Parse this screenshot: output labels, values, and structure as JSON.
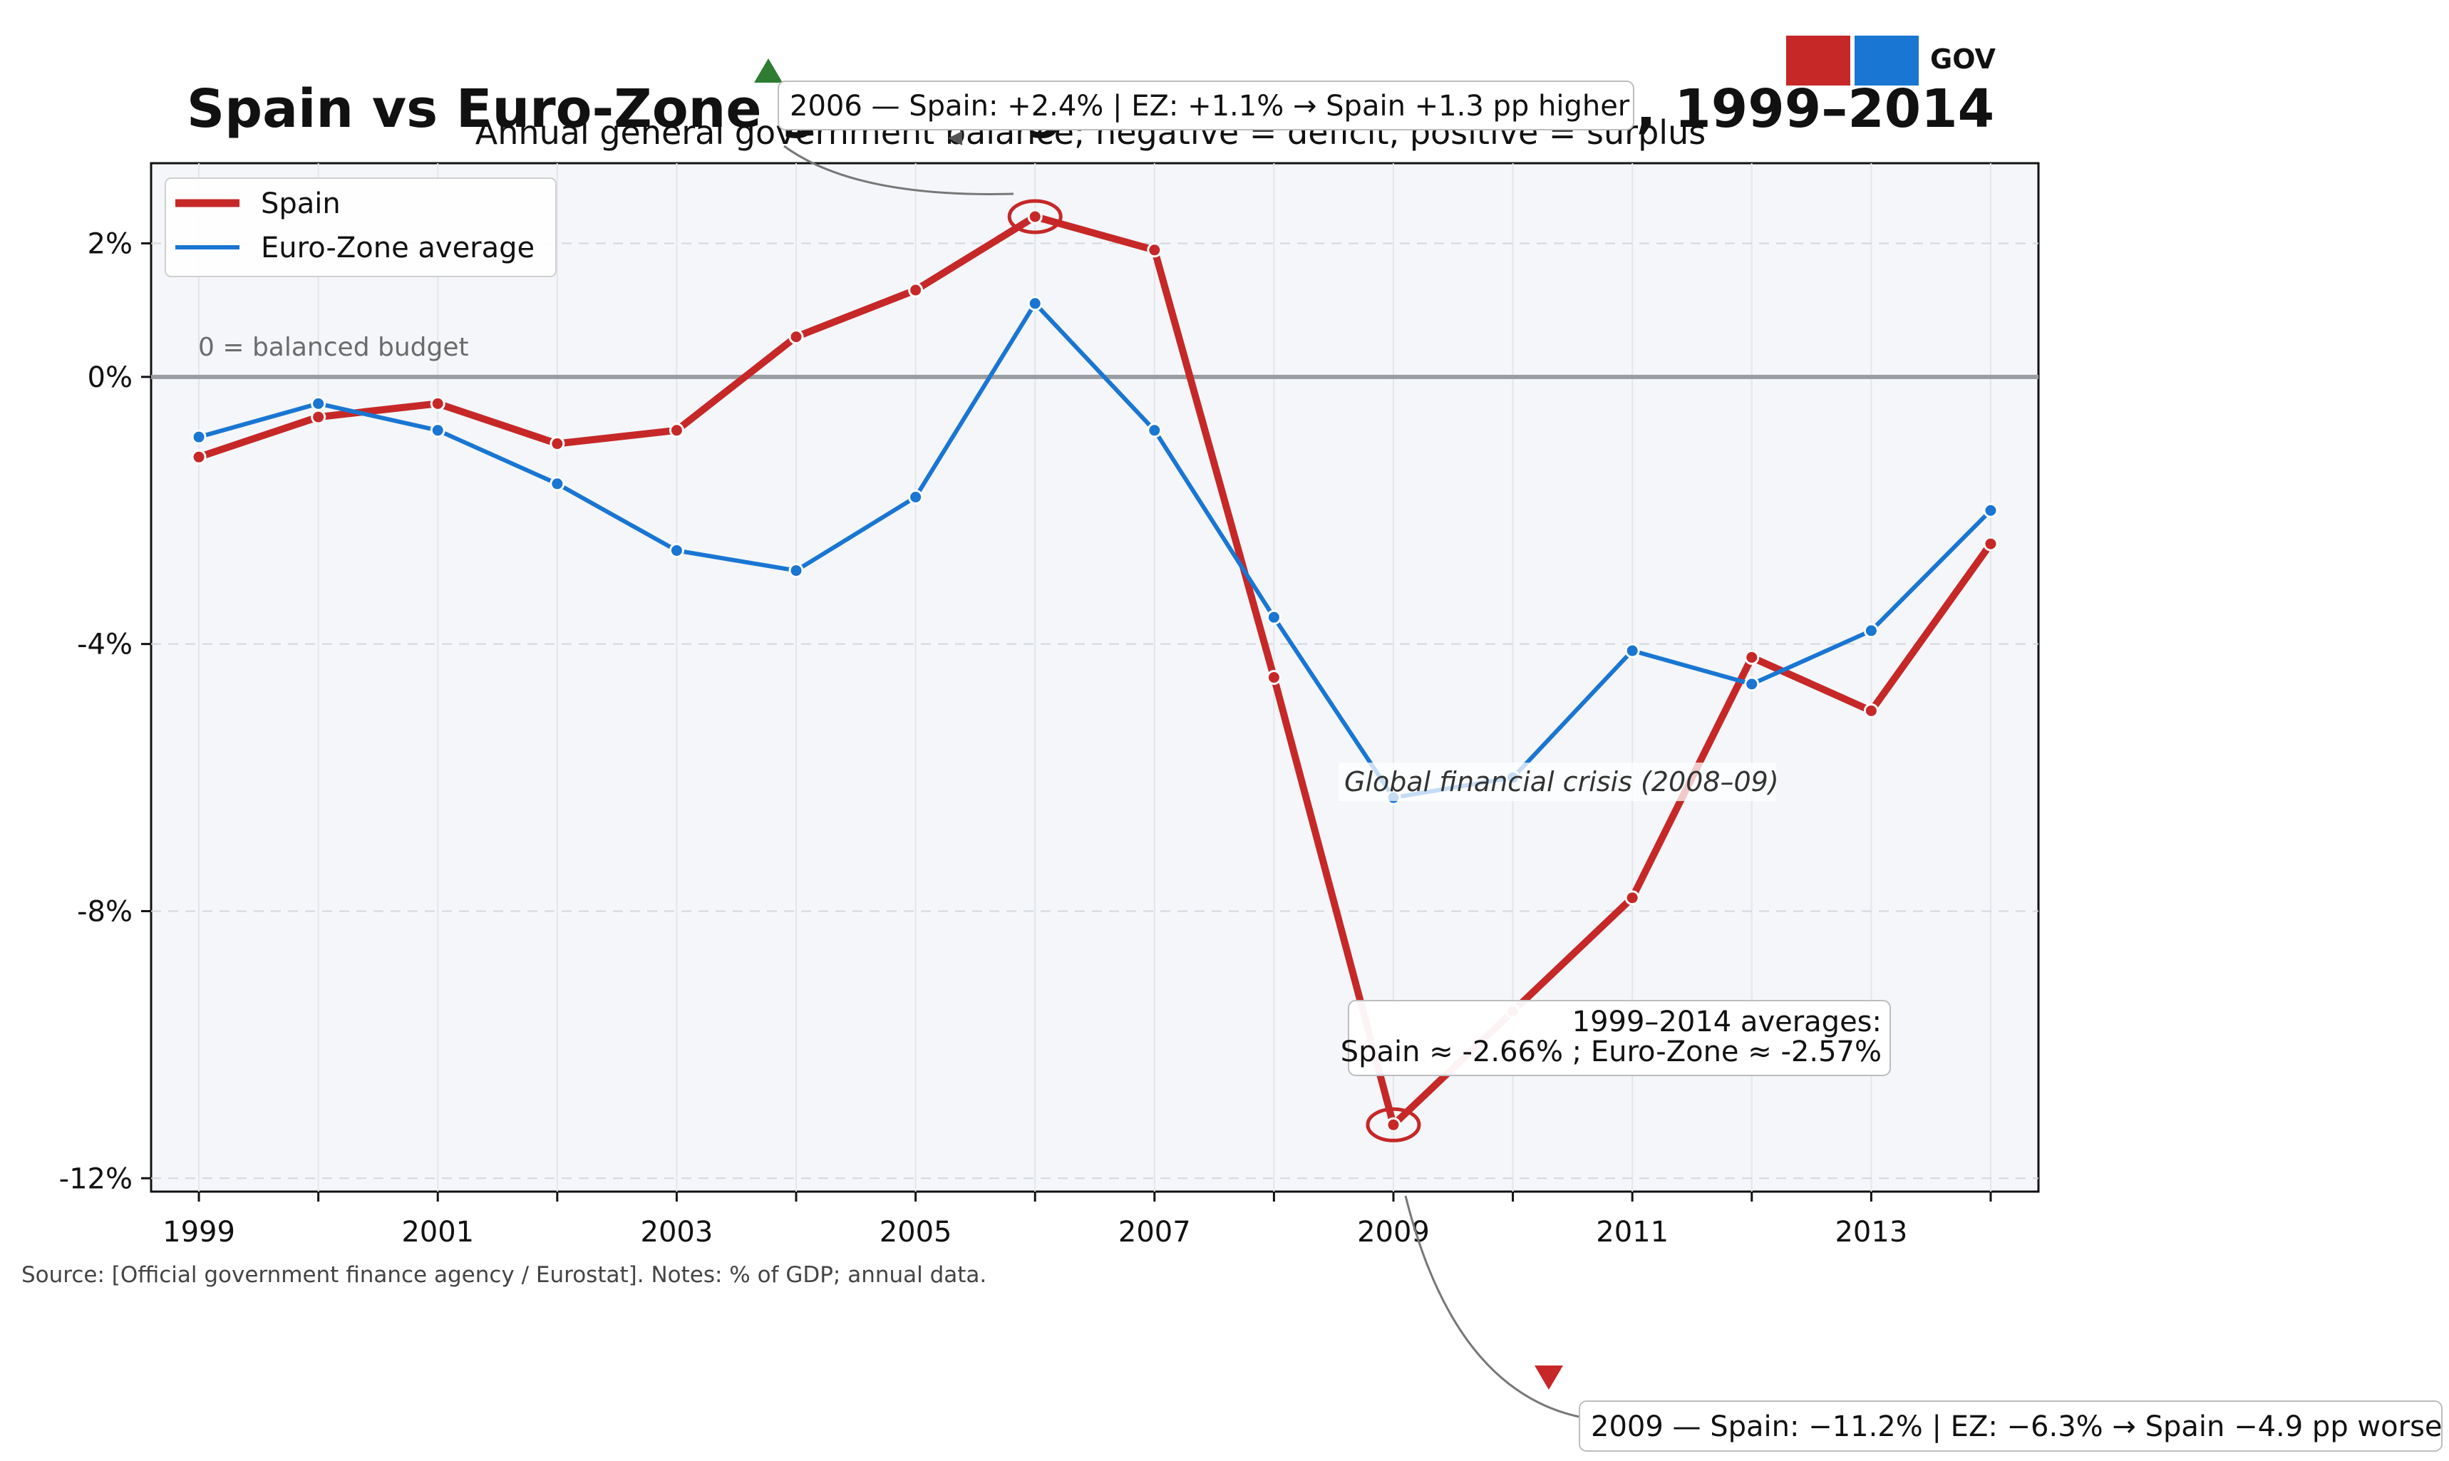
{
  "chart_data": {
    "type": "line",
    "title": "Spain vs Euro-Zone general government balance, 1999–2014",
    "subtitle": "Annual general government balance; negative = deficit, positive = surplus",
    "x": [
      1999,
      2000,
      2001,
      2002,
      2003,
      2004,
      2005,
      2006,
      2007,
      2008,
      2009,
      2010,
      2011,
      2012,
      2013,
      2014
    ],
    "x_tick_labels": [
      "1999",
      "2001",
      "2003",
      "2005",
      "2007",
      "2009",
      "2011",
      "2013"
    ],
    "y_tick_values": [
      2,
      0,
      -4,
      -8,
      -12
    ],
    "y_tick_labels": [
      "2%",
      "0%",
      "-4%",
      "-8%",
      "-12%"
    ],
    "xlim": [
      1998.6,
      2014.4
    ],
    "ylim": [
      -12.2,
      3.2
    ],
    "grid": true,
    "legend_position": "top-left",
    "series": [
      {
        "name": "Spain",
        "color": "#c62828",
        "values": [
          -1.2,
          -0.6,
          -0.4,
          -1.0,
          -0.8,
          0.6,
          1.3,
          2.4,
          1.9,
          -4.5,
          -11.2,
          -9.5,
          -7.8,
          -4.2,
          -5.0,
          -2.5
        ]
      },
      {
        "name": "Euro-Zone average",
        "color": "#1976d2",
        "values": [
          -0.9,
          -0.4,
          -0.8,
          -1.6,
          -2.6,
          -2.9,
          -1.8,
          1.1,
          -0.8,
          -3.6,
          -6.3,
          -6.0,
          -4.1,
          -4.6,
          -3.8,
          -2.0
        ]
      }
    ],
    "zero_line_label": "0 = balanced budget",
    "annotations": {
      "peak": "2006 — Spain: +2.4% | EZ: +1.1% → Spain +1.3 pp higher",
      "trough": "2009 — Spain: −11.2% | EZ: −6.3% → Spain −4.9 pp worse",
      "crisis": "Global financial crisis (2008–09)",
      "averages_line1": "1999–2014 averages:",
      "averages_line2": "Spain ≈ -2.66%  ;  Euro-Zone ≈ -2.57%"
    },
    "source": "Source: [Official government finance agency / Eurostat]. Notes: % of GDP; annual data.",
    "badge_text": "GOV"
  }
}
